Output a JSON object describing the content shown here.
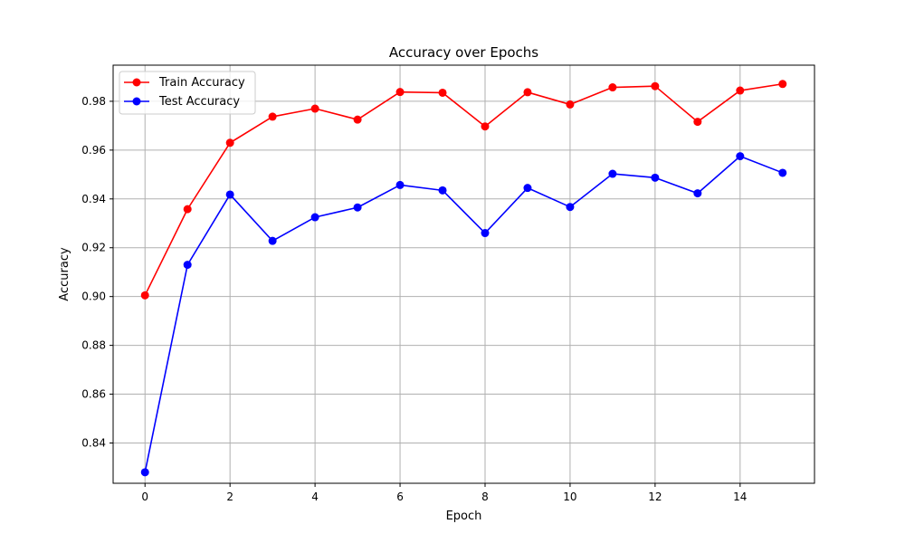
{
  "chart_data": {
    "type": "line",
    "title": "Accuracy over Epochs",
    "xlabel": "Epoch",
    "ylabel": "Accuracy",
    "x": [
      0,
      1,
      2,
      3,
      4,
      5,
      6,
      7,
      8,
      9,
      10,
      11,
      12,
      13,
      14,
      15
    ],
    "xlim": [
      -0.75,
      15.75
    ],
    "ylim": [
      0.8235,
      0.9948
    ],
    "xticks": [
      0,
      2,
      4,
      6,
      8,
      10,
      12,
      14
    ],
    "xtick_labels": [
      "0",
      "2",
      "4",
      "6",
      "8",
      "10",
      "12",
      "14"
    ],
    "yticks": [
      0.84,
      0.86,
      0.88,
      0.9,
      0.92,
      0.94,
      0.96,
      0.98
    ],
    "ytick_labels": [
      "0.84",
      "0.86",
      "0.88",
      "0.90",
      "0.92",
      "0.94",
      "0.96",
      "0.98"
    ],
    "grid": true,
    "legend_position": "top-left",
    "series": [
      {
        "name": "Train Accuracy",
        "color": "#ff0000",
        "marker": "circle",
        "values": [
          0.9005,
          0.9358,
          0.963,
          0.9737,
          0.977,
          0.9725,
          0.9838,
          0.9835,
          0.9697,
          0.9837,
          0.9787,
          0.9857,
          0.9862,
          0.9716,
          0.9844,
          0.9871
        ]
      },
      {
        "name": "Test Accuracy",
        "color": "#0000ff",
        "marker": "circle",
        "values": [
          0.828,
          0.913,
          0.9418,
          0.9228,
          0.9325,
          0.9365,
          0.9457,
          0.9435,
          0.926,
          0.9445,
          0.9367,
          0.9503,
          0.9487,
          0.9423,
          0.9575,
          0.9507
        ]
      }
    ]
  }
}
